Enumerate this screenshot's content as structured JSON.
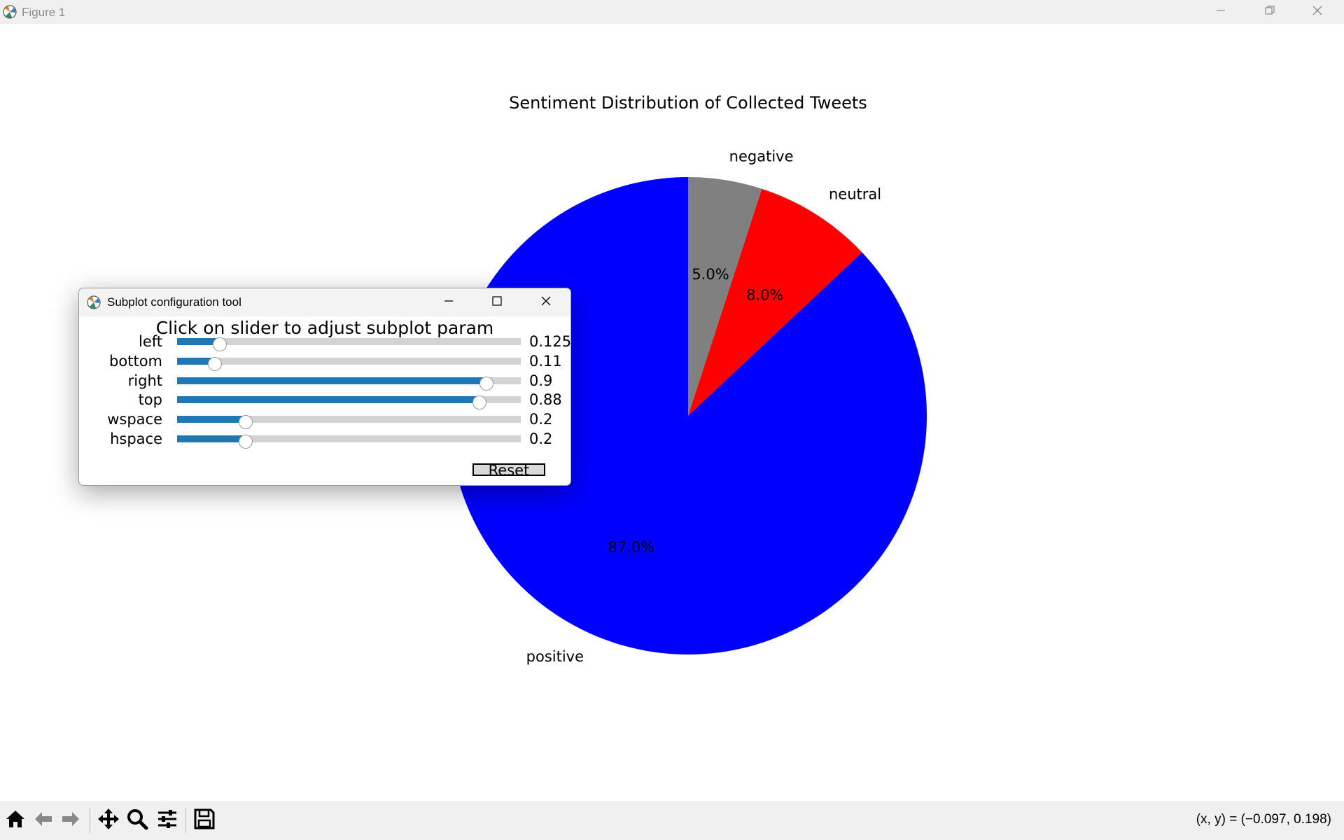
{
  "window": {
    "title": "Figure 1",
    "controls": {
      "minimize": "minimize-icon",
      "maximize": "restore-icon",
      "close": "close-icon"
    }
  },
  "colors": {
    "negative": "#808080",
    "neutral": "#ff0000",
    "positive": "#0000ff",
    "slider_fill": "#1f77b4",
    "slider_track": "#d3d3d3"
  },
  "chart_data": {
    "type": "pie",
    "title": "Sentiment Distribution of Collected Tweets",
    "start_angle_deg": 90,
    "direction": "clockwise",
    "slices": [
      {
        "label": "negative",
        "value": 5.0,
        "pct_label": "5.0%",
        "color": "#808080"
      },
      {
        "label": "neutral",
        "value": 8.0,
        "pct_label": "8.0%",
        "color": "#ff0000"
      },
      {
        "label": "positive",
        "value": 87.0,
        "pct_label": "87.0%",
        "color": "#0000ff"
      }
    ]
  },
  "dialog": {
    "title": "Subplot configuration tool",
    "heading": "Click on slider to adjust subplot param",
    "sliders": [
      {
        "label": "left",
        "value": 0.125,
        "display": "0.125"
      },
      {
        "label": "bottom",
        "value": 0.11,
        "display": "0.11"
      },
      {
        "label": "right",
        "value": 0.9,
        "display": "0.9"
      },
      {
        "label": "top",
        "value": 0.88,
        "display": "0.88"
      },
      {
        "label": "wspace",
        "value": 0.2,
        "display": "0.2"
      },
      {
        "label": "hspace",
        "value": 0.2,
        "display": "0.2"
      }
    ],
    "reset_label": "Reset"
  },
  "toolbar": {
    "buttons": [
      "home-icon",
      "back-icon",
      "forward-icon",
      "pan-icon",
      "zoom-icon",
      "configure-subplots-icon",
      "save-icon"
    ],
    "coords": "(x, y) = (−0.097, 0.198)"
  }
}
